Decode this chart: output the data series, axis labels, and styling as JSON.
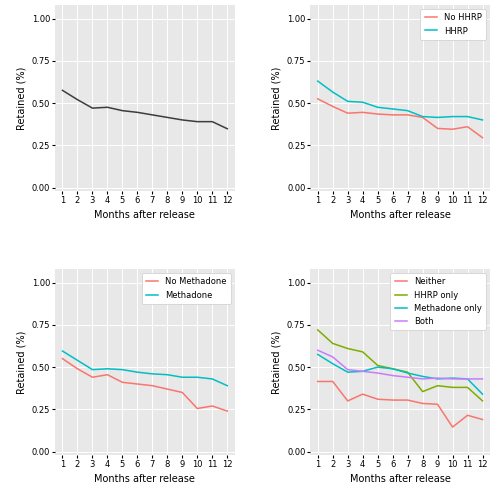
{
  "months": [
    1,
    2,
    3,
    4,
    5,
    6,
    7,
    8,
    9,
    10,
    11,
    12
  ],
  "overall": [
    0.575,
    0.52,
    0.47,
    0.475,
    0.455,
    0.445,
    0.43,
    0.415,
    0.4,
    0.39,
    0.39,
    0.348
  ],
  "no_hhrp": [
    0.525,
    0.48,
    0.44,
    0.445,
    0.435,
    0.43,
    0.43,
    0.415,
    0.35,
    0.345,
    0.36,
    0.295
  ],
  "hhrp": [
    0.63,
    0.565,
    0.51,
    0.505,
    0.475,
    0.465,
    0.455,
    0.42,
    0.415,
    0.42,
    0.42,
    0.4
  ],
  "no_methadone": [
    0.55,
    0.49,
    0.44,
    0.455,
    0.41,
    0.4,
    0.39,
    0.37,
    0.35,
    0.255,
    0.27,
    0.24
  ],
  "methadone": [
    0.595,
    0.54,
    0.485,
    0.49,
    0.485,
    0.47,
    0.46,
    0.455,
    0.44,
    0.44,
    0.43,
    0.39
  ],
  "neither": [
    0.415,
    0.415,
    0.3,
    0.34,
    0.31,
    0.305,
    0.305,
    0.285,
    0.28,
    0.145,
    0.215,
    0.19
  ],
  "hhrp_only": [
    0.72,
    0.64,
    0.61,
    0.59,
    0.51,
    0.49,
    0.47,
    0.355,
    0.39,
    0.38,
    0.38,
    0.3
  ],
  "methadone_only": [
    0.575,
    0.52,
    0.47,
    0.475,
    0.5,
    0.49,
    0.465,
    0.445,
    0.43,
    0.435,
    0.43,
    0.34
  ],
  "both": [
    0.6,
    0.56,
    0.485,
    0.475,
    0.465,
    0.45,
    0.44,
    0.43,
    0.435,
    0.43,
    0.43,
    0.43
  ],
  "color_black": "#3d3d3d",
  "color_red": "#f8766d",
  "color_cyan": "#00bfc4",
  "color_green": "#7cae00",
  "color_purple": "#c77cff",
  "bg_color": "#e8e8e8",
  "grid_color": "#ffffff",
  "ylabel": "Retained (%)",
  "xlabel": "Months after release"
}
